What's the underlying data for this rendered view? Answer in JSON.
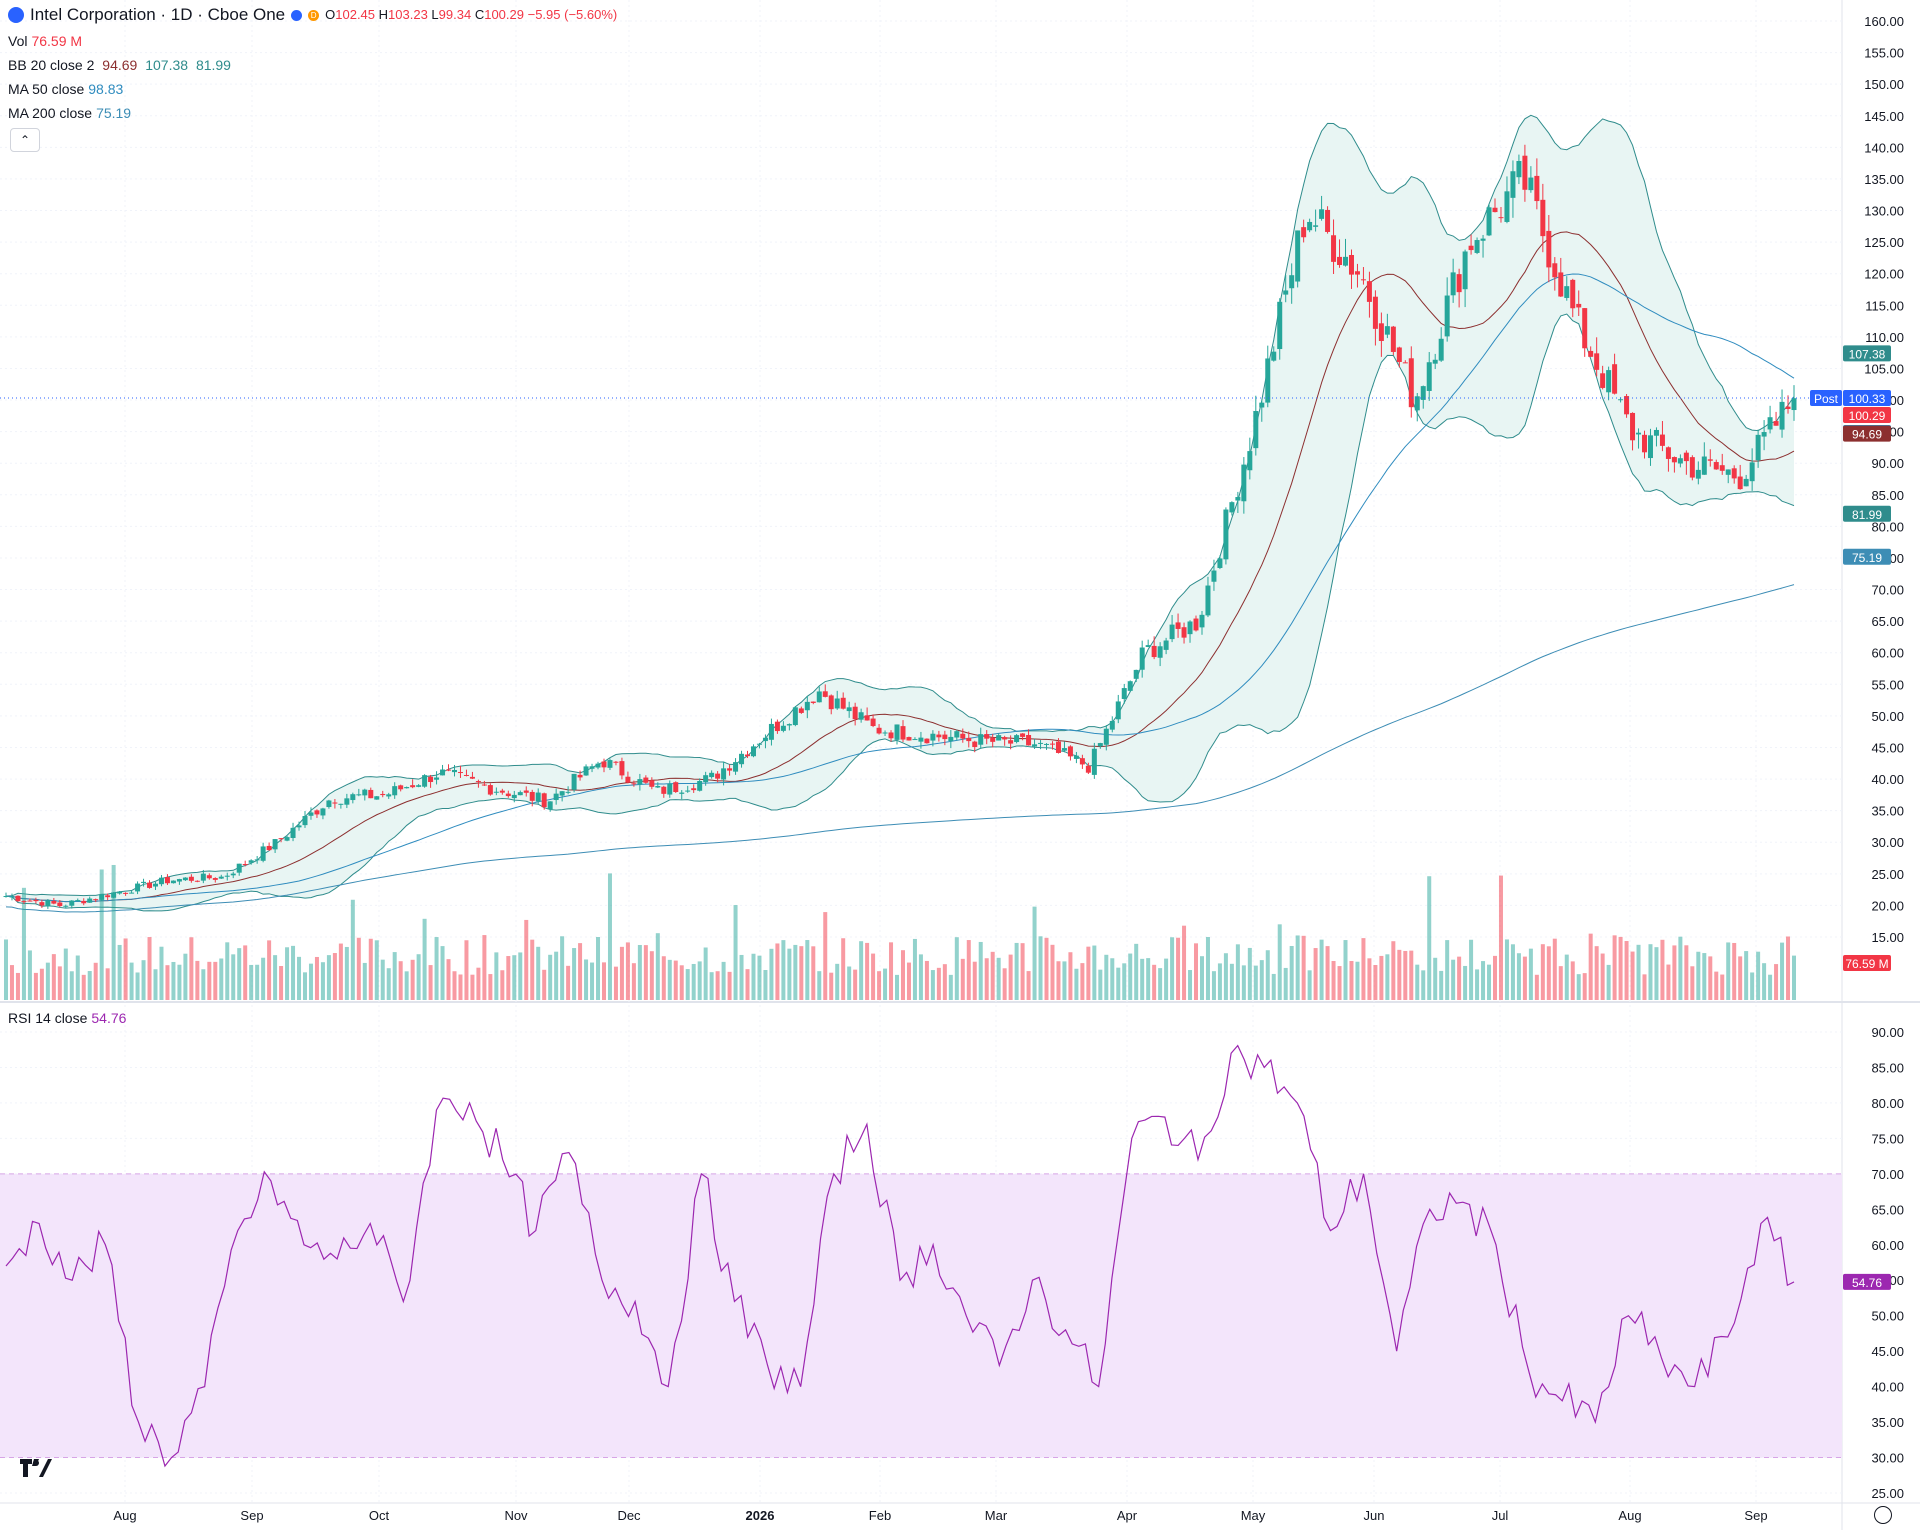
{
  "header": {
    "symbol_title": "Intel Corporation · 1D · Cboe One",
    "open_label": "O",
    "open": "102.45",
    "high_label": "H",
    "high": "103.23",
    "low_label": "L",
    "low": "99.34",
    "close_label": "C",
    "close": "100.29",
    "change": "−5.95 (−5.60%)",
    "delayed_badge": "D"
  },
  "legend": {
    "vol_label": "Vol",
    "vol_value": "76.59 M",
    "bb_label": "BB 20 close 2",
    "bb_mid": "94.69",
    "bb_upper": "107.38",
    "bb_lower": "81.99",
    "ma50_label": "MA 50 close",
    "ma50_value": "98.83",
    "ma200_label": "MA 200 close",
    "ma200_value": "75.19",
    "rsi_label": "RSI 14 close",
    "rsi_value": "54.76"
  },
  "colors": {
    "up": "#26a69a",
    "down": "#f23645",
    "bb": "#2f8c8c",
    "bb_fill": "#e8f5f3",
    "ma50": "#2f8cbf",
    "ma200": "#3d8db5",
    "basis": "#8c2f2f",
    "rsi": "#9c27b0",
    "rsi_band": "#f3e5fb",
    "post": "#2962ff"
  },
  "price_labels": {
    "upper": "107.38",
    "post_tag": "Post",
    "post": "100.33",
    "last": "100.29",
    "ma50": "98.83",
    "mid": "94.69",
    "lower": "81.99",
    "ma200": "75.19",
    "vol": "76.59 M",
    "rsi": "54.76"
  },
  "chart_data": [
    {
      "type": "candlestick",
      "title": "Intel Corporation · 1D · Cboe One",
      "y_axis_ticks": [
        "160.00",
        "155.00",
        "150.00",
        "145.00",
        "140.00",
        "135.00",
        "130.00",
        "125.00",
        "120.00",
        "115.00",
        "110.00",
        "105.00",
        "100.00",
        "95.00",
        "90.00",
        "85.00",
        "80.00",
        "75.00",
        "70.00",
        "65.00",
        "60.00",
        "55.00",
        "50.00",
        "45.00",
        "40.00",
        "35.00",
        "30.00",
        "25.00",
        "20.00",
        "15.00"
      ],
      "ylim": [
        15,
        160
      ],
      "x_axis_labels": [
        "Aug",
        "Sep",
        "Oct",
        "Nov",
        "Dec",
        "2026",
        "Feb",
        "Mar",
        "Apr",
        "May",
        "Jun",
        "Jul",
        "Aug",
        "Sep"
      ],
      "close_anchors": [
        [
          "Jul",
          21.5
        ],
        [
          "Aug",
          20.0
        ],
        [
          "Aug-mid",
          22.0
        ],
        [
          "Sep",
          24.0
        ],
        [
          "Sep-mid",
          24.5
        ],
        [
          "Sep-end",
          30.0
        ],
        [
          "Oct",
          37.0
        ],
        [
          "Oct-mid",
          37.5
        ],
        [
          "Oct-end",
          41.0
        ],
        [
          "Nov",
          38.5
        ],
        [
          "Nov-mid",
          36.5
        ],
        [
          "Dec",
          43.0
        ],
        [
          "Dec-mid",
          38.0
        ],
        [
          "Jan",
          40.0
        ],
        [
          "Jan-mid",
          47.0
        ],
        [
          "Jan-end",
          54.0
        ],
        [
          "Feb",
          48.0
        ],
        [
          "Feb-mid",
          47.0
        ],
        [
          "Mar",
          46.0
        ],
        [
          "Mar-mid",
          45.5
        ],
        [
          "Apr",
          42.0
        ],
        [
          "Apr-mid",
          60.0
        ],
        [
          "Apr-end",
          65.0
        ],
        [
          "May",
          95.0
        ],
        [
          "May-mid",
          130.0
        ],
        [
          "May-end",
          120.0
        ],
        [
          "Jun",
          100.0
        ],
        [
          "Jun-mid",
          125.0
        ],
        [
          "Jul",
          135.0
        ],
        [
          "Jul-mid",
          112.0
        ],
        [
          "Aug",
          95.0
        ],
        [
          "Aug-end",
          90.0
        ],
        [
          "Sep",
          88.0
        ],
        [
          "Sep-mid",
          100.29
        ]
      ],
      "series": [
        {
          "name": "BB 20 close 2",
          "upper": 107.38,
          "basis": 94.69,
          "lower": 81.99
        },
        {
          "name": "MA 50 close",
          "value": 98.83
        },
        {
          "name": "MA 200 close",
          "value": 75.19
        },
        {
          "name": "Vol",
          "value": "76.59 M"
        }
      ],
      "last": 100.29,
      "post": 100.33
    },
    {
      "type": "line",
      "title": "RSI 14 close",
      "y_axis_ticks": [
        "90.00",
        "85.00",
        "80.00",
        "75.00",
        "70.00",
        "65.00",
        "60.00",
        "55.00",
        "50.00",
        "45.00",
        "40.00",
        "35.00",
        "30.00",
        "25.00"
      ],
      "ylim": [
        25,
        90
      ],
      "band": [
        30,
        70
      ],
      "points": [
        [
          "Jul",
          57
        ],
        [
          "Jul",
          63
        ],
        [
          "Jul",
          55
        ],
        [
          "Jul",
          60
        ],
        [
          "Aug",
          35
        ],
        [
          "Aug",
          30
        ],
        [
          "Aug",
          40
        ],
        [
          "Aug",
          62
        ],
        [
          "Aug-mid",
          69
        ],
        [
          "Sep",
          60
        ],
        [
          "Sep",
          58
        ],
        [
          "Sep",
          63
        ],
        [
          "Sep-mid",
          52
        ],
        [
          "Sep-end",
          79
        ],
        [
          "Oct",
          80
        ],
        [
          "Oct",
          72
        ],
        [
          "Oct-mid",
          62
        ],
        [
          "Oct-end",
          73
        ],
        [
          "Nov",
          55
        ],
        [
          "Nov",
          52
        ],
        [
          "Nov-mid",
          40
        ],
        [
          "Dec",
          70
        ],
        [
          "Dec",
          52
        ],
        [
          "Dec-mid",
          43
        ],
        [
          "Jan",
          40
        ],
        [
          "Jan-mid",
          70
        ],
        [
          "Jan-end",
          77
        ],
        [
          "Feb",
          55
        ],
        [
          "Feb",
          60
        ],
        [
          "Feb-mid",
          50
        ],
        [
          "Mar",
          43
        ],
        [
          "Mar",
          55
        ],
        [
          "Mar-mid",
          48
        ],
        [
          "Apr",
          40
        ],
        [
          "Apr",
          75
        ],
        [
          "Apr-mid",
          78
        ],
        [
          "Apr-end",
          72
        ],
        [
          "May",
          87
        ],
        [
          "May",
          85
        ],
        [
          "May-mid",
          80
        ],
        [
          "May-end",
          62
        ],
        [
          "Jun",
          70
        ],
        [
          "Jun",
          45
        ],
        [
          "Jun-mid",
          65
        ],
        [
          "Jul",
          66
        ],
        [
          "Jul",
          60
        ],
        [
          "Jul-mid",
          42
        ],
        [
          "Aug",
          38
        ],
        [
          "Aug",
          35
        ],
        [
          "Aug-mid",
          50
        ],
        [
          "Aug-end",
          44
        ],
        [
          "Sep",
          40
        ],
        [
          "Sep",
          47
        ],
        [
          "Sep-mid",
          63
        ],
        [
          "Sep-mid",
          54.76
        ]
      ],
      "last": 54.76
    }
  ]
}
